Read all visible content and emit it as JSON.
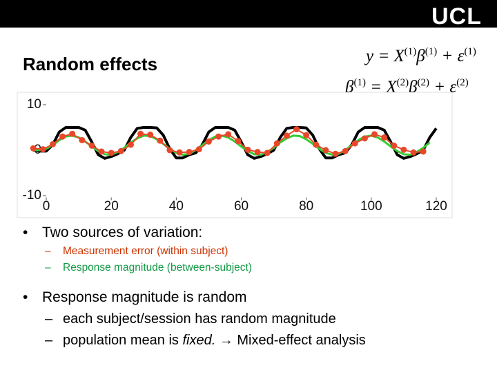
{
  "header": {
    "logo": "UCL"
  },
  "title": "Random effects",
  "equations": [
    [
      {
        "text": "y = X"
      },
      {
        "sup": "(1)"
      },
      {
        "text": "β"
      },
      {
        "sup": "(1)"
      },
      {
        "text": " + ε"
      },
      {
        "sup": "(1)"
      }
    ],
    [
      {
        "text": "β"
      },
      {
        "sup": "(1)"
      },
      {
        "text": " = X"
      },
      {
        "sup": "(2)"
      },
      {
        "text": "β"
      },
      {
        "sup": "(2)"
      },
      {
        "text": " + ε"
      },
      {
        "sup": "(2)"
      }
    ]
  ],
  "chart_data": {
    "type": "line",
    "xlim": [
      -5,
      122
    ],
    "ylim": [
      -11,
      12
    ],
    "xticks": [
      0,
      20,
      40,
      60,
      80,
      100,
      120
    ],
    "yticks": [
      -10,
      0,
      10
    ],
    "series": [
      {
        "color": "#000000",
        "width": 4,
        "marker": false,
        "x": [
          -4,
          -2,
          0,
          2,
          4,
          6,
          8,
          10,
          12,
          14,
          16,
          18,
          20,
          22,
          24,
          26,
          28,
          30,
          32,
          34,
          36,
          38,
          40,
          42,
          44,
          46,
          48,
          50,
          52,
          54,
          56,
          58,
          60,
          62,
          64,
          66,
          68,
          70,
          72,
          74,
          76,
          78,
          80,
          82,
          84,
          86,
          88,
          90,
          92,
          94,
          96,
          98,
          100,
          102,
          104,
          106,
          108,
          110,
          112,
          114,
          116,
          118,
          120
        ],
        "values": [
          0,
          -0.2,
          -0.2,
          1.2,
          4,
          5,
          5,
          5,
          4.4,
          1.8,
          -1,
          -1.8,
          -1.4,
          -0.8,
          0,
          2.8,
          4.8,
          5,
          5,
          4.9,
          3.3,
          0.3,
          -1.7,
          -1.7,
          -1,
          -0.6,
          1.2,
          4,
          5,
          5,
          5,
          4.4,
          1.8,
          -1,
          -1.8,
          -1.4,
          -0.8,
          0,
          2.8,
          4.8,
          5,
          5,
          4.9,
          3.3,
          0.3,
          -1.7,
          -1.7,
          -1,
          -0.6,
          1.2,
          4,
          5,
          5,
          5,
          4.4,
          1.8,
          -1,
          -1.8,
          -1.4,
          -0.8,
          0,
          2.8,
          4.8
        ]
      },
      {
        "color": "#33cc33",
        "width": 3,
        "marker": false,
        "x": [
          -4,
          -2,
          0,
          2,
          4,
          6,
          8,
          10,
          12,
          14,
          16,
          18,
          20,
          22,
          24,
          26,
          28,
          30,
          32,
          34,
          36,
          38,
          40,
          42,
          44,
          46,
          48,
          50,
          52,
          54,
          56,
          58,
          60,
          62,
          64,
          66,
          68,
          70,
          72,
          74,
          76,
          78,
          80,
          82,
          84,
          86,
          88,
          90,
          92,
          94,
          96,
          98,
          100,
          102,
          104,
          106,
          108,
          110,
          112,
          114,
          116,
          118
        ],
        "values": [
          0,
          0,
          0.3,
          1.1,
          2.2,
          3,
          3.2,
          2.8,
          1.9,
          0.8,
          -0.2,
          -0.9,
          -1,
          -0.4,
          0.5,
          1.7,
          2.6,
          3.2,
          3.1,
          2.4,
          1.4,
          0.3,
          -0.6,
          -1,
          -0.8,
          0,
          1.1,
          2.2,
          3,
          3.2,
          2.8,
          1.9,
          0.8,
          -0.2,
          -0.9,
          -1,
          -0.4,
          0.5,
          1.7,
          2.6,
          3.2,
          3.1,
          2.4,
          1.4,
          0.3,
          -0.6,
          -1,
          -0.8,
          0,
          1.1,
          2.2,
          3,
          3.2,
          2.8,
          1.9,
          0.8,
          -0.2,
          -0.9,
          -1,
          -0.4,
          0.5,
          1.7
        ]
      },
      {
        "color": "#e8482a",
        "width": 2,
        "marker": true,
        "x": [
          -4,
          -1,
          2,
          5,
          8,
          11,
          14,
          17,
          20,
          23,
          26,
          29,
          32,
          35,
          38,
          41,
          44,
          47,
          50,
          53,
          56,
          59,
          62,
          65,
          68,
          71,
          74,
          77,
          80,
          83,
          86,
          89,
          92,
          95,
          98,
          101,
          104,
          107,
          110,
          113,
          116
        ],
        "values": [
          0.4,
          0.2,
          1.3,
          3,
          3.6,
          2.2,
          1,
          -0.3,
          -0.6,
          -0.2,
          1.2,
          3.6,
          3.4,
          2.1,
          0,
          -0.5,
          -0.4,
          0.2,
          1.9,
          3,
          3.5,
          2,
          0.1,
          -0.4,
          -0.6,
          1.5,
          3.2,
          4.6,
          3.3,
          1.2,
          0,
          -0.8,
          -0.2,
          1.5,
          2.6,
          3.5,
          2.8,
          1,
          0.1,
          -0.5,
          -0.3
        ]
      }
    ]
  },
  "bullets": [
    {
      "text": "Two sources of variation:",
      "sub": [
        {
          "parts": [
            {
              "text": "Measurement error (within subject)"
            }
          ],
          "color": "#cc3300"
        },
        {
          "parts": [
            {
              "text": "Response magnitude (between-subject)"
            }
          ],
          "color": "#119944"
        }
      ]
    },
    {
      "text": "Response magnitude is random",
      "sub": [
        {
          "parts": [
            {
              "text": "each subject/session has random magnitude"
            }
          ],
          "color": "#000000"
        },
        {
          "parts": [
            {
              "text": "population mean is "
            },
            {
              "text": "fixed.",
              "italic": true
            },
            {
              "text": " → Mixed-effect analysis"
            }
          ],
          "color": "#000000"
        }
      ]
    }
  ]
}
